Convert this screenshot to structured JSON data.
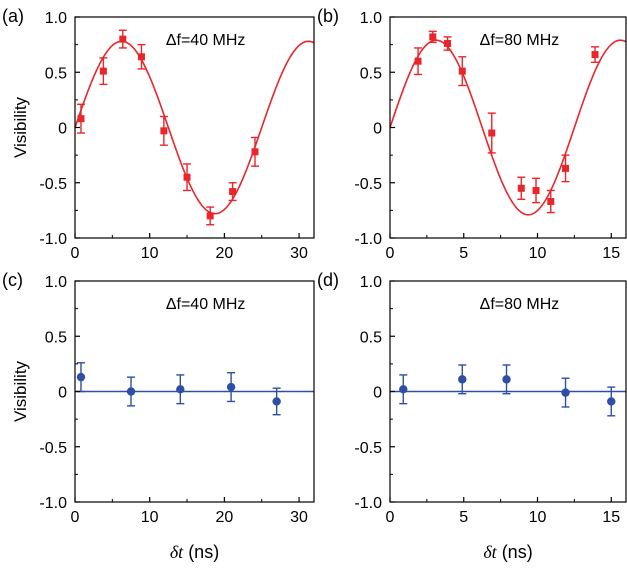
{
  "chart_data": [
    {
      "type": "scatter",
      "panel_label": "(a)",
      "annotation": "Δf=40 MHz",
      "xlabel": "",
      "ylabel": "Visibility",
      "xlim": [
        0,
        32
      ],
      "ylim": [
        -1.0,
        1.0
      ],
      "xticks": [
        0,
        10,
        20,
        30
      ],
      "xtick_labels": [
        "0",
        "10",
        "20",
        "30"
      ],
      "yticks": [
        -1.0,
        -0.5,
        0,
        0.5,
        1.0
      ],
      "ytick_labels": [
        "-1.0",
        "-0.5",
        "0",
        "0.5",
        "1.0"
      ],
      "marker": "square",
      "color": "#e8262b",
      "points": [
        {
          "x": 0.8,
          "y": 0.08,
          "err": 0.13
        },
        {
          "x": 3.8,
          "y": 0.51,
          "err": 0.12
        },
        {
          "x": 6.4,
          "y": 0.8,
          "err": 0.08
        },
        {
          "x": 8.9,
          "y": 0.64,
          "err": 0.11
        },
        {
          "x": 11.9,
          "y": -0.03,
          "err": 0.13
        },
        {
          "x": 15.0,
          "y": -0.45,
          "err": 0.12
        },
        {
          "x": 18.1,
          "y": -0.8,
          "err": 0.08
        },
        {
          "x": 21.1,
          "y": -0.58,
          "err": 0.08
        },
        {
          "x": 24.1,
          "y": -0.22,
          "err": 0.13
        }
      ],
      "fit": {
        "type": "sine",
        "amplitude": 0.78,
        "period": 25,
        "phase_offset": 0,
        "xmax": 32
      }
    },
    {
      "type": "scatter",
      "panel_label": "(b)",
      "annotation": "Δf=80 MHz",
      "xlabel": "",
      "ylabel": "",
      "xlim": [
        0,
        16
      ],
      "ylim": [
        -1.0,
        1.0
      ],
      "xticks": [
        0,
        5,
        10,
        15
      ],
      "xtick_labels": [
        "0",
        "5",
        "10",
        "15"
      ],
      "yticks": [
        -1.0,
        -0.5,
        0,
        0.5,
        1.0
      ],
      "ytick_labels": [
        "-1.0",
        "-0.5",
        "0",
        "0.5",
        "1.0"
      ],
      "marker": "square",
      "color": "#e8262b",
      "points": [
        {
          "x": 1.9,
          "y": 0.6,
          "err": 0.12
        },
        {
          "x": 2.9,
          "y": 0.82,
          "err": 0.05
        },
        {
          "x": 3.9,
          "y": 0.76,
          "err": 0.06
        },
        {
          "x": 4.9,
          "y": 0.51,
          "err": 0.13
        },
        {
          "x": 6.9,
          "y": -0.05,
          "err": 0.18
        },
        {
          "x": 8.9,
          "y": -0.55,
          "err": 0.1
        },
        {
          "x": 9.9,
          "y": -0.57,
          "err": 0.11
        },
        {
          "x": 10.9,
          "y": -0.67,
          "err": 0.1
        },
        {
          "x": 11.9,
          "y": -0.37,
          "err": 0.12
        },
        {
          "x": 13.9,
          "y": 0.66,
          "err": 0.07
        }
      ],
      "fit": {
        "type": "sine",
        "amplitude": 0.79,
        "period": 12.5,
        "phase_offset": 0,
        "xmax": 16
      }
    },
    {
      "type": "scatter",
      "panel_label": "(c)",
      "annotation": "Δf=40 MHz",
      "xlabel": "δt (ns)",
      "ylabel": "Visibility",
      "xlim": [
        0,
        32
      ],
      "ylim": [
        -1.0,
        1.0
      ],
      "xticks": [
        0,
        10,
        20,
        30
      ],
      "xtick_labels": [
        "0",
        "10",
        "20",
        "30"
      ],
      "yticks": [
        -1.0,
        -0.5,
        0,
        0.5,
        1.0
      ],
      "ytick_labels": [
        "-1.0",
        "-0.5",
        "0",
        "0.5",
        "1.0"
      ],
      "marker": "circle",
      "color": "#2e4fa3",
      "points": [
        {
          "x": 0.8,
          "y": 0.13,
          "err": 0.13
        },
        {
          "x": 7.5,
          "y": 0.0,
          "err": 0.13
        },
        {
          "x": 14.1,
          "y": 0.02,
          "err": 0.13
        },
        {
          "x": 20.9,
          "y": 0.04,
          "err": 0.13
        },
        {
          "x": 27.0,
          "y": -0.09,
          "err": 0.12
        }
      ],
      "fit": {
        "type": "constant",
        "value": 0,
        "xmax": 32
      }
    },
    {
      "type": "scatter",
      "panel_label": "(d)",
      "annotation": "Δf=80 MHz",
      "xlabel": "δt (ns)",
      "ylabel": "",
      "xlim": [
        0,
        16
      ],
      "ylim": [
        -1.0,
        1.0
      ],
      "xticks": [
        0,
        5,
        10,
        15
      ],
      "xtick_labels": [
        "0",
        "5",
        "10",
        "15"
      ],
      "yticks": [
        -1.0,
        -0.5,
        0,
        0.5,
        1.0
      ],
      "ytick_labels": [
        "-1.0",
        "-0.5",
        "0",
        "0.5",
        "1.0"
      ],
      "marker": "circle",
      "color": "#2e4fa3",
      "points": [
        {
          "x": 0.9,
          "y": 0.02,
          "err": 0.13
        },
        {
          "x": 4.9,
          "y": 0.11,
          "err": 0.13
        },
        {
          "x": 7.9,
          "y": 0.11,
          "err": 0.13
        },
        {
          "x": 11.9,
          "y": -0.01,
          "err": 0.13
        },
        {
          "x": 15.0,
          "y": -0.09,
          "err": 0.13
        }
      ],
      "fit": {
        "type": "constant",
        "value": 0,
        "xmax": 16
      }
    }
  ]
}
